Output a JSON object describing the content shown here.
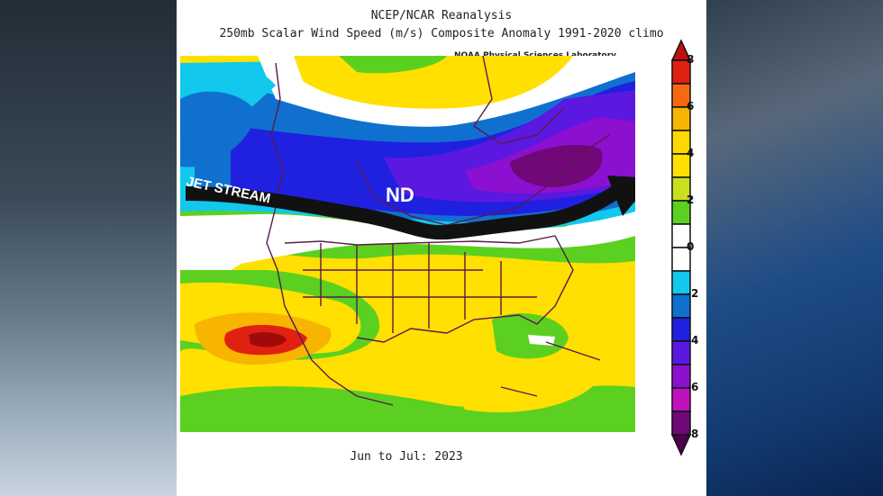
{
  "header": {
    "title": "NCEP/NCAR Reanalysis",
    "subtitle": "250mb Scalar Wind Speed (m/s) Composite Anomaly 1991-2020 climo",
    "credit": "NOAA Physical Sciences Laboratory"
  },
  "caption": "Jun to Jul: 2023",
  "annotations": {
    "jet_stream": "JET STREAM",
    "state_label": "ND"
  },
  "colorbar": {
    "labels": [
      "8",
      "6",
      "4",
      "2",
      "0",
      "-2",
      "-4",
      "-6",
      "-8"
    ],
    "colors": [
      "#e02010",
      "#f56a10",
      "#f7b400",
      "#ffd800",
      "#ffe000",
      "#c8e020",
      "#5cd020",
      "#ffffff",
      "#ffffff",
      "#12c8ec",
      "#1070d0",
      "#2020e0",
      "#5a18e0",
      "#8c10d0",
      "#c010c0",
      "#700878"
    ],
    "over_color": "#c01010",
    "under_color": "#500050"
  }
}
